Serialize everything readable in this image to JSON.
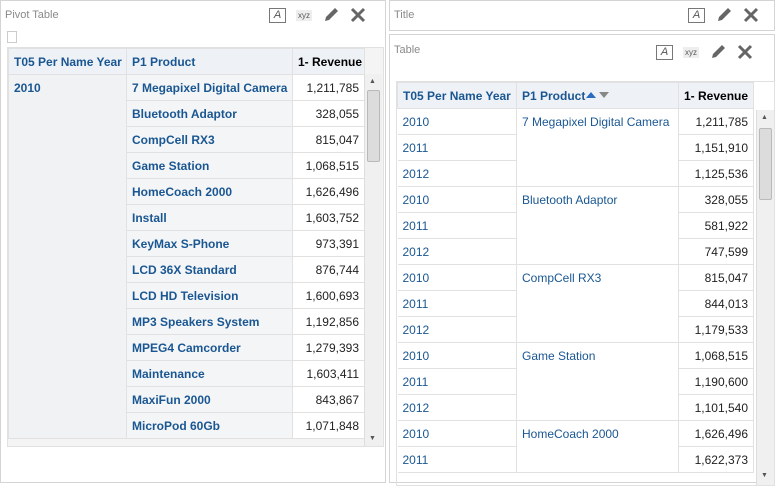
{
  "left_panel": {
    "title": "Pivot Table",
    "toolbar": {
      "format": "A",
      "rename": "xyz"
    },
    "headers": [
      "T05 Per Name Year",
      "P1 Product",
      "1- Revenue"
    ],
    "year": "2010",
    "rows": [
      [
        "7 Megapixel Digital Camera",
        "1,211,785"
      ],
      [
        "Bluetooth Adaptor",
        "328,055"
      ],
      [
        "CompCell RX3",
        "815,047"
      ],
      [
        "Game Station",
        "1,068,515"
      ],
      [
        "HomeCoach 2000",
        "1,626,496"
      ],
      [
        "Install",
        "1,603,752"
      ],
      [
        "KeyMax S-Phone",
        "973,391"
      ],
      [
        "LCD 36X Standard",
        "876,744"
      ],
      [
        "LCD HD Television",
        "1,600,693"
      ],
      [
        "MP3 Speakers System",
        "1,192,856"
      ],
      [
        "MPEG4 Camcorder",
        "1,279,393"
      ],
      [
        "Maintenance",
        "1,603,411"
      ],
      [
        "MaxiFun 2000",
        "843,867"
      ],
      [
        "MicroPod 60Gb",
        "1,071,848"
      ]
    ]
  },
  "title_panel": {
    "title": "Title"
  },
  "right_panel": {
    "title": "Table",
    "toolbar": {
      "format": "A",
      "rename": "xyz"
    },
    "headers": [
      "T05 Per Name Year",
      "P1 Product",
      "1- Revenue"
    ],
    "groups": [
      {
        "product": "7 Megapixel Digital Camera",
        "rows": [
          [
            "2010",
            "1,211,785"
          ],
          [
            "2011",
            "1,151,910"
          ],
          [
            "2012",
            "1,125,536"
          ]
        ]
      },
      {
        "product": "Bluetooth Adaptor",
        "rows": [
          [
            "2010",
            "328,055"
          ],
          [
            "2011",
            "581,922"
          ],
          [
            "2012",
            "747,599"
          ]
        ]
      },
      {
        "product": "CompCell RX3",
        "rows": [
          [
            "2010",
            "815,047"
          ],
          [
            "2011",
            "844,013"
          ],
          [
            "2012",
            "1,179,533"
          ]
        ]
      },
      {
        "product": "Game Station",
        "rows": [
          [
            "2010",
            "1,068,515"
          ],
          [
            "2011",
            "1,190,600"
          ],
          [
            "2012",
            "1,101,540"
          ]
        ]
      },
      {
        "product": "HomeCoach 2000",
        "rows": [
          [
            "2010",
            "1,626,496"
          ],
          [
            "2011",
            "1,622,373"
          ]
        ]
      }
    ]
  }
}
